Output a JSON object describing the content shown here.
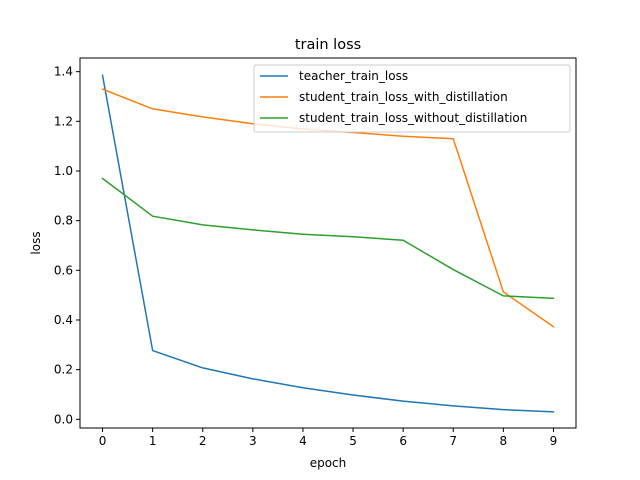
{
  "chart_data": {
    "type": "line",
    "title": "train loss",
    "xlabel": "epoch",
    "ylabel": "loss",
    "x": [
      0,
      1,
      2,
      3,
      4,
      5,
      6,
      7,
      8,
      9
    ],
    "xticks": [
      "0",
      "1",
      "2",
      "3",
      "4",
      "5",
      "6",
      "7",
      "8",
      "9"
    ],
    "yticks": [
      "0.0",
      "0.2",
      "0.4",
      "0.6",
      "0.8",
      "1.0",
      "1.2",
      "1.4"
    ],
    "xlim": [
      -0.45,
      9.45
    ],
    "ylim": [
      -0.035,
      1.455
    ],
    "grid": false,
    "legend_position": "top-right",
    "series": [
      {
        "name": "teacher_train_loss",
        "color": "#1f77b4",
        "values": [
          1.385,
          0.277,
          0.207,
          0.163,
          0.127,
          0.098,
          0.073,
          0.054,
          0.039,
          0.03
        ]
      },
      {
        "name": "student_train_loss_with_distillation",
        "color": "#ff7f0e",
        "values": [
          1.33,
          1.25,
          1.218,
          1.19,
          1.169,
          1.155,
          1.14,
          1.13,
          0.513,
          0.373
        ]
      },
      {
        "name": "student_train_loss_without_distillation",
        "color": "#2ca02c",
        "values": [
          0.97,
          0.818,
          0.783,
          0.763,
          0.745,
          0.735,
          0.721,
          0.603,
          0.497,
          0.487
        ]
      }
    ]
  }
}
